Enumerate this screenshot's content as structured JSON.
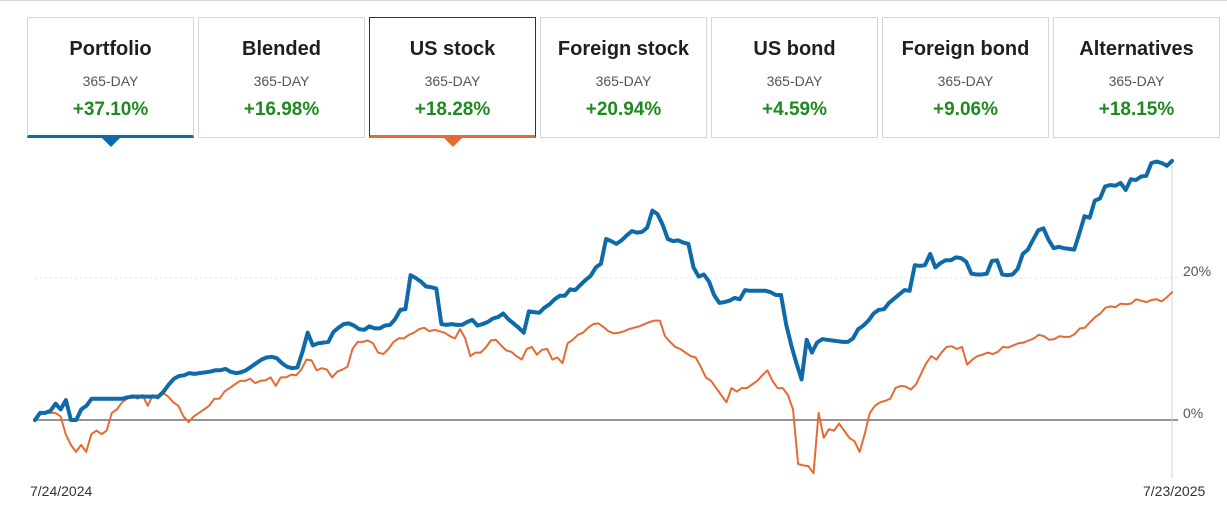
{
  "tabs": [
    {
      "title": "Portfolio",
      "period": "365-DAY",
      "change": "+37.10%",
      "state": "primary"
    },
    {
      "title": "Blended",
      "period": "365-DAY",
      "change": "+16.98%",
      "state": ""
    },
    {
      "title": "US stock",
      "period": "365-DAY",
      "change": "+18.28%",
      "state": "compare"
    },
    {
      "title": "Foreign stock",
      "period": "365-DAY",
      "change": "+20.94%",
      "state": ""
    },
    {
      "title": "US bond",
      "period": "365-DAY",
      "change": "+4.59%",
      "state": ""
    },
    {
      "title": "Foreign bond",
      "period": "365-DAY",
      "change": "+9.06%",
      "state": ""
    },
    {
      "title": "Alternatives",
      "period": "365-DAY",
      "change": "+18.15%",
      "state": ""
    }
  ],
  "colors": {
    "portfolio_line": "#0e6aa8",
    "us_stock_line": "#e46b34",
    "positive_change": "#1f8a1f",
    "gridline": "#e3e3e3",
    "zero_line": "#555555"
  },
  "chart_data": {
    "type": "line",
    "xlabel": "",
    "ylabel": "",
    "x_start_label": "7/24/2024",
    "x_end_label": "7/23/2025",
    "ylim": [
      -8,
      38
    ],
    "yticks": [
      {
        "value": 0,
        "label": "0%"
      },
      {
        "value": 20,
        "label": "20%"
      }
    ],
    "series": [
      {
        "key": "portfolio",
        "color": "#0e6aa8",
        "values": [
          0,
          1,
          1,
          1.3,
          2.3,
          1.5,
          2.8,
          0,
          0,
          1.5,
          2,
          3,
          3,
          3,
          3,
          3,
          3,
          3,
          3.2,
          3.3,
          3.3,
          3.3,
          3.3,
          3.3,
          3.3,
          4,
          5,
          5.8,
          6.2,
          6.3,
          6.6,
          6.5,
          6.6,
          6.7,
          6.8,
          7,
          7,
          7.2,
          6.8,
          6.6,
          6.7,
          7,
          7.5,
          8,
          8.5,
          8.8,
          8.9,
          8.7,
          8,
          7.5,
          7.3,
          7.4,
          9.6,
          12.3,
          10.5,
          10.8,
          10.9,
          11,
          12.4,
          13,
          13.5,
          13.6,
          13.3,
          12.8,
          12.7,
          13.2,
          12.9,
          12.9,
          13.3,
          13.4,
          14.2,
          15.5,
          15.6,
          20.4,
          20,
          19.5,
          18.8,
          18.7,
          18.5,
          13.5,
          13.4,
          13.5,
          13.4,
          13.4,
          13.8,
          14.1,
          13.3,
          13.5,
          13.8,
          14.3,
          14.5,
          15,
          14.2,
          13.6,
          13,
          12.3,
          15.3,
          15.2,
          15.1,
          15.8,
          16.3,
          17,
          17.5,
          17.5,
          18.4,
          18.3,
          19,
          19.7,
          20.3,
          21.5,
          22,
          25.5,
          25.2,
          24.8,
          25.3,
          26,
          26.6,
          26.4,
          26.5,
          27.1,
          29.5,
          29,
          27.5,
          25.5,
          25.2,
          25.3,
          25,
          24.8,
          21.5,
          20.2,
          20.5,
          19.5,
          17.6,
          16.5,
          16.6,
          16.8,
          17.2,
          17,
          18.3,
          18.2,
          18.2,
          18.2,
          18.2,
          18,
          17.6,
          17.6,
          13.5,
          10.5,
          8,
          5.7,
          11.3,
          9.5,
          10.9,
          11.4,
          11.3,
          11.2,
          11.1,
          11,
          11,
          11.5,
          12.8,
          13.3,
          14,
          15,
          15.5,
          15.6,
          16.5,
          17.1,
          17.7,
          18.3,
          18.2,
          21.8,
          21.7,
          21.8,
          23.4,
          21.5,
          22.1,
          22.5,
          22.5,
          22.9,
          22.8,
          22.3,
          20.6,
          20.5,
          20.5,
          20.6,
          22.4,
          22.5,
          20.5,
          20.4,
          20.5,
          21.3,
          23.4,
          24,
          25.4,
          26.7,
          27,
          25.4,
          24.2,
          24.4,
          24.2,
          24.1,
          24,
          26.3,
          28.7,
          28.5,
          30.9,
          31.2,
          32.9,
          33.1,
          33,
          33.4,
          32.4,
          33.9,
          33.8,
          34.3,
          34.4,
          36.2,
          36.4,
          36.2,
          35.8,
          36.5
        ]
      },
      {
        "key": "us_stock",
        "color": "#e46b34",
        "values": [
          0,
          1,
          1,
          1,
          1,
          0.5,
          -2,
          -3.5,
          -4.5,
          -3.5,
          -4.5,
          -2,
          -1.5,
          -2,
          -1.5,
          1,
          1.5,
          2.5,
          3,
          3.5,
          3,
          3.5,
          2,
          3.5,
          3,
          3.8,
          3.3,
          2.5,
          2,
          0.5,
          -0.3,
          0.5,
          1,
          1.5,
          2,
          3,
          3,
          4,
          4.5,
          5,
          5.5,
          5.5,
          5.8,
          5.2,
          5.5,
          5.6,
          6,
          4.8,
          6,
          6,
          6.4,
          6.3,
          7.1,
          8.5,
          8.4,
          7,
          7.3,
          7.1,
          6,
          6.8,
          7.1,
          7.5,
          10,
          11,
          11,
          11.2,
          10.8,
          9.5,
          9.3,
          10,
          11,
          11.5,
          11.5,
          12,
          12.3,
          12.8,
          13,
          12.5,
          12.7,
          12.5,
          12.3,
          11.8,
          11.5,
          12.8,
          11.5,
          9,
          9.5,
          9.5,
          10.2,
          11.2,
          11.3,
          10.5,
          9.8,
          9.6,
          9,
          8.5,
          10,
          10.3,
          9.2,
          9.9,
          10,
          8.5,
          8.8,
          8,
          10.8,
          11.3,
          12,
          12.3,
          13,
          13.5,
          13.6,
          13.1,
          12.5,
          12.2,
          12.3,
          12.5,
          12.8,
          13,
          13.2,
          13.5,
          13.8,
          14,
          14,
          11.8,
          11,
          10.3,
          10,
          9.5,
          9,
          8.8,
          7.5,
          6,
          5.5,
          4.5,
          3.5,
          2.5,
          4.5,
          4,
          4.5,
          4.5,
          5,
          5.5,
          6.3,
          7,
          5.5,
          4.5,
          4.5,
          3.5,
          1.5,
          -6.2,
          -6.4,
          -6.5,
          -7.5,
          1,
          -2.5,
          -1.3,
          -1.5,
          -0.5,
          -1.5,
          -2.5,
          -3,
          -4.5,
          -2,
          1,
          2,
          2.5,
          2.7,
          3,
          4.5,
          4.8,
          4.7,
          4.3,
          5,
          6.5,
          8,
          9,
          8.5,
          9.5,
          10.3,
          10.4,
          10,
          10.3,
          7.8,
          8.5,
          9,
          9.2,
          9.5,
          9.3,
          9.6,
          10.3,
          10.2,
          10.5,
          10.8,
          10.9,
          11.2,
          11.5,
          12,
          11.8,
          11.3,
          11.4,
          11.8,
          11.7,
          11.7,
          12.1,
          12.9,
          13,
          13.8,
          14.5,
          15,
          15.8,
          16,
          15.9,
          16.4,
          16.3,
          16.4,
          17,
          16.8,
          16.6,
          16.9,
          17,
          16.7,
          17.3,
          18
        ]
      }
    ]
  }
}
